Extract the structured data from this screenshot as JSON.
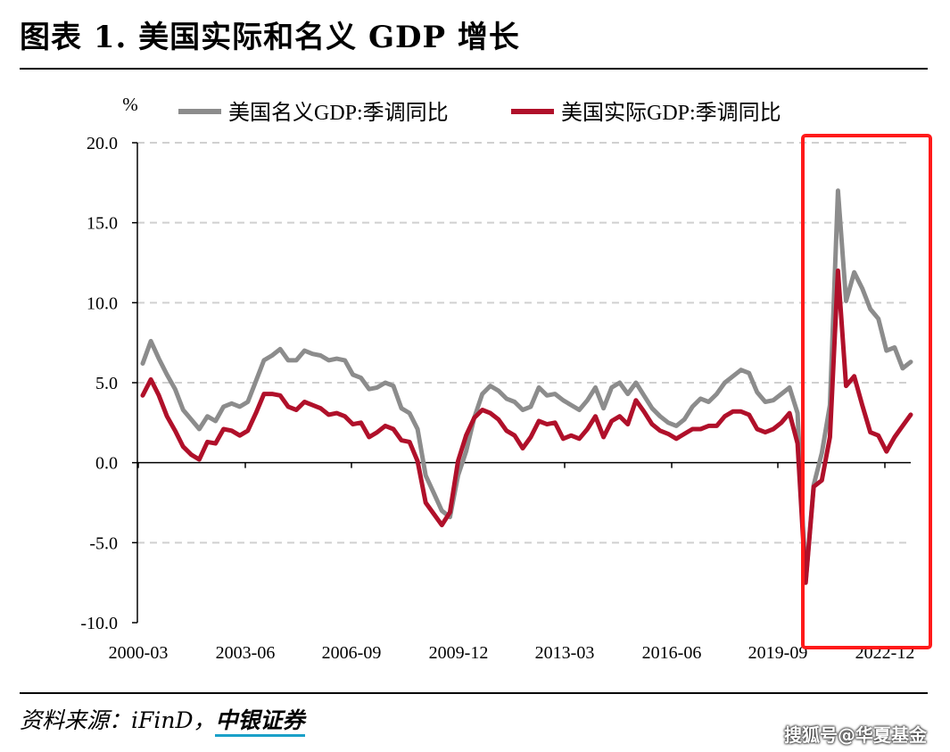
{
  "header": {
    "title": "图表 1. 美国实际和名义 GDP 增长"
  },
  "footer": {
    "source_prefix": "资料来源：iFinD，",
    "source_brand": "中银证券",
    "watermark": "搜狐号@华夏基金"
  },
  "colors": {
    "nominal": "#8c8c8c",
    "real": "#b0102a",
    "highlight": "#ff1a1a",
    "grid": "#d0d0d0"
  },
  "chart_data": {
    "type": "line",
    "title": "",
    "ylabel": "%",
    "ylim": [
      -10,
      20
    ],
    "yticks": [
      "20.0",
      "15.0",
      "10.0",
      "5.0",
      "0.0",
      "-5.0",
      "-10.0"
    ],
    "xticks": [
      "2000-03",
      "2003-06",
      "2006-09",
      "2009-12",
      "2013-03",
      "2016-06",
      "2019-09",
      "2022-12"
    ],
    "legend_position": "top",
    "grid": "horizontal dashed",
    "highlight_range": [
      "2019-12",
      "2023-06"
    ],
    "series": [
      {
        "name": "美国名义GDP:季调同比",
        "values": [
          6.2,
          7.6,
          6.5,
          5.5,
          4.6,
          3.3,
          2.7,
          2.1,
          2.9,
          2.6,
          3.5,
          3.7,
          3.5,
          3.8,
          5.1,
          6.4,
          6.7,
          7.1,
          6.4,
          6.4,
          7.0,
          6.8,
          6.7,
          6.4,
          6.5,
          6.4,
          5.5,
          5.3,
          4.6,
          4.7,
          5.0,
          4.8,
          3.4,
          3.1,
          2.1,
          -0.8,
          -1.9,
          -3.0,
          -3.4,
          -0.8,
          0.7,
          2.8,
          4.3,
          4.8,
          4.5,
          4.0,
          3.8,
          3.3,
          3.5,
          4.7,
          4.2,
          4.3,
          3.9,
          3.6,
          3.3,
          3.9,
          4.7,
          3.4,
          4.7,
          5.0,
          4.3,
          5.0,
          4.2,
          3.4,
          2.9,
          2.5,
          2.3,
          2.7,
          3.5,
          4.0,
          3.8,
          4.3,
          5.0,
          5.4,
          5.8,
          5.6,
          4.4,
          3.8,
          3.9,
          4.3,
          4.7,
          3.1,
          -7.4,
          -1.4,
          0.6,
          3.6,
          17.0,
          10.1,
          11.9,
          10.9,
          9.6,
          9.0,
          7.0,
          7.2,
          5.9,
          6.3
        ]
      },
      {
        "name": "美国实际GDP:季调同比",
        "values": [
          4.2,
          5.2,
          4.2,
          2.9,
          2.0,
          1.0,
          0.5,
          0.2,
          1.3,
          1.2,
          2.1,
          2.0,
          1.7,
          2.0,
          3.1,
          4.3,
          4.3,
          4.2,
          3.5,
          3.3,
          3.8,
          3.6,
          3.4,
          3.0,
          3.1,
          2.9,
          2.4,
          2.5,
          1.6,
          1.9,
          2.3,
          2.1,
          1.4,
          1.3,
          0.1,
          -2.5,
          -3.2,
          -3.9,
          -3.1,
          0.1,
          1.7,
          2.8,
          3.3,
          3.1,
          2.7,
          2.0,
          1.7,
          0.9,
          1.6,
          2.6,
          2.4,
          2.5,
          1.5,
          1.7,
          1.5,
          2.1,
          2.9,
          1.6,
          2.6,
          2.9,
          2.4,
          3.9,
          3.2,
          2.4,
          2.0,
          1.8,
          1.5,
          1.8,
          2.1,
          2.1,
          2.3,
          2.3,
          2.9,
          3.2,
          3.2,
          3.0,
          2.1,
          1.9,
          2.1,
          2.5,
          3.1,
          1.2,
          -7.5,
          -1.5,
          -1.1,
          1.6,
          12.0,
          4.8,
          5.4,
          3.6,
          1.9,
          1.7,
          0.7,
          1.6,
          2.3,
          3.0
        ]
      }
    ]
  }
}
